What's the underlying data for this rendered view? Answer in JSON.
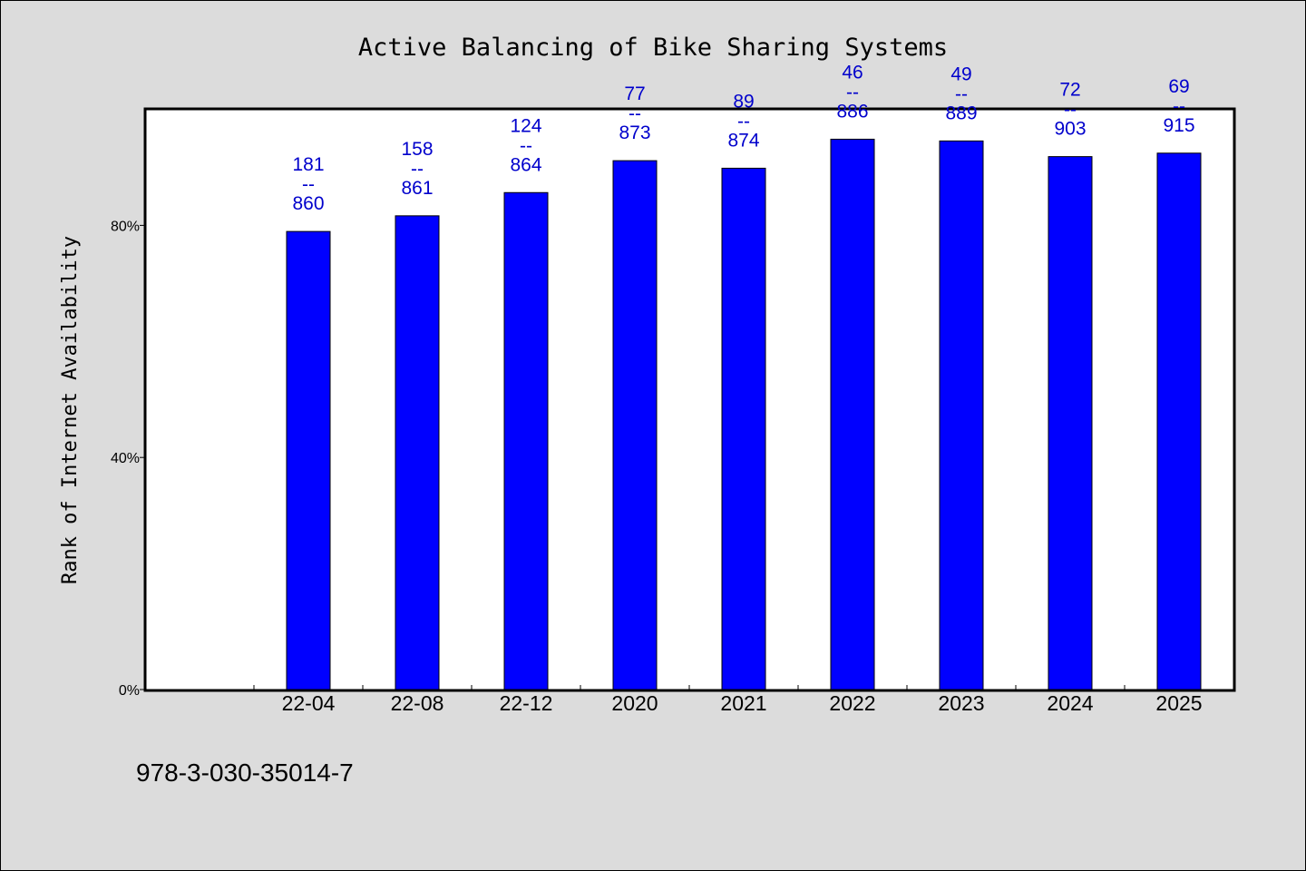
{
  "chart_data": {
    "type": "bar",
    "title": "Active Balancing of Bike Sharing Systems",
    "xlabel": "",
    "ylabel": "Rank of Internet Availability",
    "ylim": [
      0,
      1.0
    ],
    "yticks": [
      {
        "value": 0,
        "label": "0%"
      },
      {
        "value": 0.4,
        "label": "40%"
      },
      {
        "value": 0.8,
        "label": "80%"
      }
    ],
    "categories": [
      "22-04",
      "22-08",
      "22-12",
      "2020",
      "2021",
      "2022",
      "2023",
      "2024",
      "2025"
    ],
    "values": [
      0.7895,
      0.8165,
      0.8565,
      0.9115,
      0.8985,
      0.9485,
      0.9455,
      0.9185,
      0.9245
    ],
    "labels": [
      {
        "top": "181",
        "sep": "--",
        "bottom": "860"
      },
      {
        "top": "158",
        "sep": "--",
        "bottom": "861"
      },
      {
        "top": "124",
        "sep": "--",
        "bottom": "864"
      },
      {
        "top": "77",
        "sep": "--",
        "bottom": "873"
      },
      {
        "top": "89",
        "sep": "--",
        "bottom": "874"
      },
      {
        "top": "46",
        "sep": "--",
        "bottom": "886"
      },
      {
        "top": "49",
        "sep": "--",
        "bottom": "889"
      },
      {
        "top": "72",
        "sep": "--",
        "bottom": "903"
      },
      {
        "top": "69",
        "sep": "--",
        "bottom": "915"
      }
    ],
    "bar_color": "#0000ff",
    "label_color": "#0000cc",
    "grid": false,
    "legend": "none"
  },
  "footer_text": "978-3-030-35014-7"
}
